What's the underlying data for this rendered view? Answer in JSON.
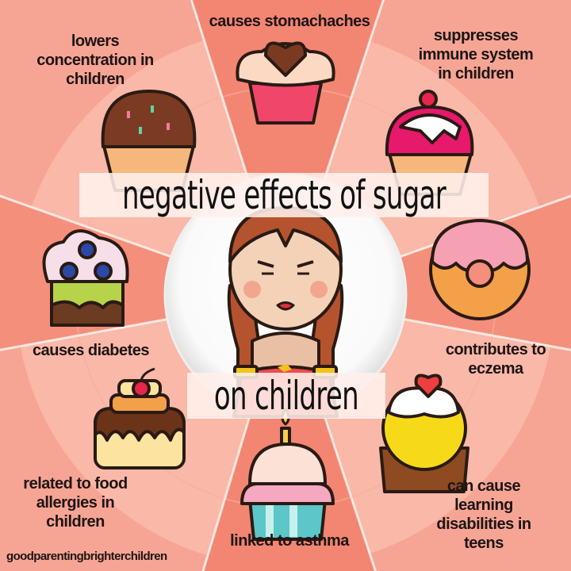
{
  "title_line1": "negative effects of sugar",
  "title_line2": "on children",
  "effects": {
    "stomachaches": [
      "causes stomachaches"
    ],
    "concentration": [
      "lowers",
      "concentration in",
      "children"
    ],
    "immune": [
      "suppresses",
      "immune system",
      "in children"
    ],
    "diabetes": [
      "causes diabetes"
    ],
    "eczema": [
      "contributes to",
      "eczema"
    ],
    "allergies": [
      "related to food",
      "allergies in",
      "children"
    ],
    "asthma": [
      "linked to asthma"
    ],
    "learning": [
      "can cause",
      "learning",
      "disabilities in",
      "teens"
    ]
  },
  "watermark": "goodparentingbrighterchildren",
  "colors": {
    "background": "#f6a594",
    "ring": "#f9b8a8",
    "wedge_dark": "#f28672",
    "center": "#ffffff",
    "text": "#1e1414"
  }
}
